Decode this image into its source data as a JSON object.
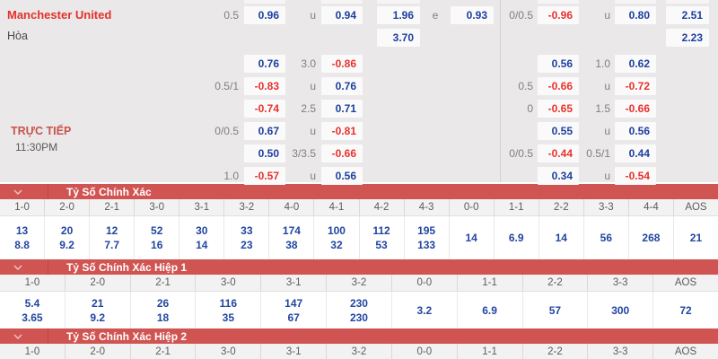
{
  "colors": {
    "accent_red": "#d05452",
    "odds_blue": "#1c3f9e",
    "odds_red": "#e8312e",
    "team_red": "#e4302c"
  },
  "match": {
    "home_team": "Manchester United",
    "draw_label": "Hòa",
    "live_label": "TRỰC TIẾP",
    "time": "11:30PM"
  },
  "odds": {
    "left_rows": [
      [
        [
          "hdp",
          "0.5",
          "label"
        ],
        [
          "o1",
          "0.96",
          "odd"
        ],
        [
          "mid",
          "u",
          "label"
        ],
        [
          "o2",
          "0.94",
          "odd"
        ],
        [
          "x1",
          "1.96",
          "odd"
        ],
        [
          "e",
          "e",
          "label"
        ],
        [
          "x2",
          "0.93",
          "odd"
        ]
      ],
      [
        [
          "x1",
          "3.70",
          "odd"
        ]
      ],
      [
        [
          "o1",
          "0.76",
          "odd"
        ],
        [
          "mid",
          "3.0",
          "label"
        ],
        [
          "o2",
          "-0.86",
          "odd"
        ]
      ],
      [
        [
          "hdp",
          "0.5/1",
          "label"
        ],
        [
          "o1",
          "-0.83",
          "odd"
        ],
        [
          "mid",
          "u",
          "label"
        ],
        [
          "o2",
          "0.76",
          "odd"
        ]
      ],
      [
        [
          "o1",
          "-0.74",
          "odd"
        ],
        [
          "mid",
          "2.5",
          "label"
        ],
        [
          "o2",
          "0.71",
          "odd"
        ]
      ],
      [
        [
          "hdp",
          "0/0.5",
          "label"
        ],
        [
          "o1",
          "0.67",
          "odd"
        ],
        [
          "mid",
          "u",
          "label"
        ],
        [
          "o2",
          "-0.81",
          "odd"
        ]
      ],
      [
        [
          "o1",
          "0.50",
          "odd"
        ],
        [
          "mid",
          "3/3.5",
          "label"
        ],
        [
          "o2",
          "-0.66",
          "odd"
        ]
      ],
      [
        [
          "hdp",
          "1.0",
          "label"
        ],
        [
          "o1",
          "-0.57",
          "odd"
        ],
        [
          "mid",
          "u",
          "label"
        ],
        [
          "o2",
          "0.56",
          "odd"
        ]
      ]
    ],
    "right_rows": [
      [
        [
          "hdp",
          "0/0.5",
          "label"
        ],
        [
          "o1",
          "-0.96",
          "odd"
        ],
        [
          "mid",
          "u",
          "label"
        ],
        [
          "o2",
          "0.80",
          "odd"
        ],
        [
          "x2",
          "2.51",
          "odd"
        ]
      ],
      [
        [
          "x2",
          "2.23",
          "odd"
        ]
      ],
      [
        [
          "o1",
          "0.56",
          "odd"
        ],
        [
          "mid",
          "1.0",
          "label"
        ],
        [
          "o2",
          "0.62",
          "odd"
        ]
      ],
      [
        [
          "hdp",
          "0.5",
          "label"
        ],
        [
          "o1",
          "-0.66",
          "odd"
        ],
        [
          "mid",
          "u",
          "label"
        ],
        [
          "o2",
          "-0.72",
          "odd"
        ]
      ],
      [
        [
          "hdp",
          "0",
          "label"
        ],
        [
          "o1",
          "-0.65",
          "odd"
        ],
        [
          "mid",
          "1.5",
          "label"
        ],
        [
          "o2",
          "-0.66",
          "odd"
        ]
      ],
      [
        [
          "o1",
          "0.55",
          "odd"
        ],
        [
          "mid",
          "u",
          "label"
        ],
        [
          "o2",
          "0.56",
          "odd"
        ]
      ],
      [
        [
          "hdp",
          "0/0.5",
          "label"
        ],
        [
          "o1",
          "-0.44",
          "odd"
        ],
        [
          "mid",
          "0.5/1",
          "label"
        ],
        [
          "o2",
          "0.44",
          "odd"
        ]
      ],
      [
        [
          "o1",
          "0.34",
          "odd"
        ],
        [
          "mid",
          "u",
          "label"
        ],
        [
          "o2",
          "-0.54",
          "odd"
        ]
      ]
    ]
  },
  "sections": [
    {
      "title": "Tỷ Số Chính Xác",
      "columns": [
        "1-0",
        "2-0",
        "2-1",
        "3-0",
        "3-1",
        "3-2",
        "4-0",
        "4-1",
        "4-2",
        "4-3",
        "0-0",
        "1-1",
        "2-2",
        "3-3",
        "4-4",
        "AOS"
      ],
      "values": [
        {
          "top": "13",
          "bottom": "8.8"
        },
        {
          "top": "20",
          "bottom": "9.2"
        },
        {
          "top": "12",
          "bottom": "7.7"
        },
        {
          "top": "52",
          "bottom": "16"
        },
        {
          "top": "30",
          "bottom": "14"
        },
        {
          "top": "33",
          "bottom": "23"
        },
        {
          "top": "174",
          "bottom": "38"
        },
        {
          "top": "100",
          "bottom": "32"
        },
        {
          "top": "112",
          "bottom": "53"
        },
        {
          "top": "195",
          "bottom": "133"
        },
        {
          "single": "14"
        },
        {
          "single": "6.9"
        },
        {
          "single": "14"
        },
        {
          "single": "56"
        },
        {
          "single": "268"
        },
        {
          "single": "21"
        }
      ]
    },
    {
      "title": "Tỷ Số Chính Xác Hiệp 1",
      "columns": [
        "1-0",
        "2-0",
        "2-1",
        "3-0",
        "3-1",
        "3-2",
        "0-0",
        "1-1",
        "2-2",
        "3-3",
        "AOS"
      ],
      "values": [
        {
          "top": "5.4",
          "bottom": "3.65"
        },
        {
          "top": "21",
          "bottom": "9.2"
        },
        {
          "top": "26",
          "bottom": "18"
        },
        {
          "top": "116",
          "bottom": "35"
        },
        {
          "top": "147",
          "bottom": "67"
        },
        {
          "top": "230",
          "bottom": "230"
        },
        {
          "single": "3.2"
        },
        {
          "single": "6.9"
        },
        {
          "single": "57"
        },
        {
          "single": "300"
        },
        {
          "single": "72"
        }
      ]
    },
    {
      "title": "Tỷ Số Chính Xác Hiệp 2",
      "columns": [
        "1-0",
        "2-0",
        "2-1",
        "3-0",
        "3-1",
        "3-2",
        "0-0",
        "1-1",
        "2-2",
        "3-3",
        "AOS"
      ],
      "values": []
    }
  ]
}
